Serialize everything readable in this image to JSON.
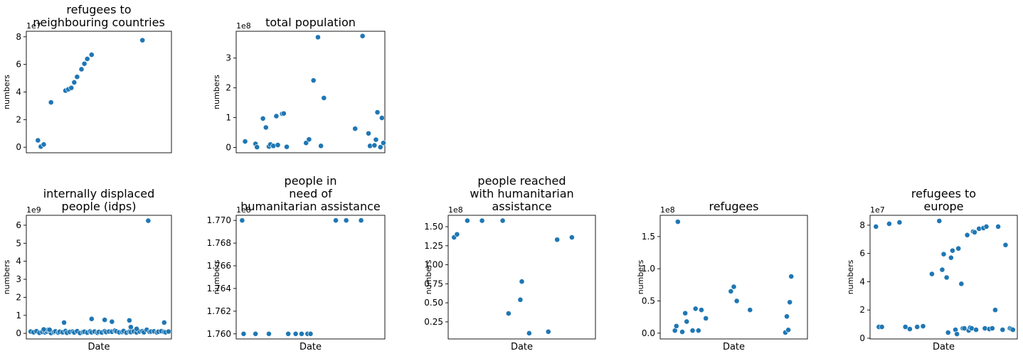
{
  "figure": {
    "background": "#ffffff",
    "point_color": "#1f77b4"
  },
  "chart_data": [
    {
      "type": "scatter",
      "title_lines": [
        "refugees to",
        "neighbouring countries"
      ],
      "xlabel": "",
      "ylabel": "numbers",
      "offset_label": "1e7",
      "ylim": [
        -0.4,
        8.4
      ],
      "yticks": [
        0,
        2,
        4,
        6,
        8
      ],
      "ytick_labels": [
        "0",
        "2",
        "4",
        "6",
        "8"
      ],
      "grid": false,
      "x": [
        0.08,
        0.1,
        0.12,
        0.17,
        0.27,
        0.29,
        0.31,
        0.33,
        0.35,
        0.38,
        0.4,
        0.42,
        0.45,
        0.8
      ],
      "y": [
        0.5,
        0.05,
        0.2,
        3.25,
        4.1,
        4.2,
        4.3,
        4.7,
        5.1,
        5.65,
        6.05,
        6.4,
        6.7,
        7.75
      ]
    },
    {
      "type": "scatter",
      "title_lines": [
        "total population"
      ],
      "xlabel": "",
      "ylabel": "numbers",
      "offset_label": "1e8",
      "ylim": [
        -0.18,
        3.9
      ],
      "yticks": [
        0,
        1,
        2,
        3
      ],
      "ytick_labels": [
        "0",
        "1",
        "2",
        "3"
      ],
      "grid": false,
      "x": [
        0.06,
        0.13,
        0.14,
        0.18,
        0.2,
        0.22,
        0.23,
        0.25,
        0.27,
        0.28,
        0.31,
        0.32,
        0.34,
        0.47,
        0.49,
        0.52,
        0.55,
        0.57,
        0.59,
        0.8,
        0.85,
        0.89,
        0.9,
        0.93,
        0.94,
        0.95,
        0.97,
        0.98,
        0.99
      ],
      "y": [
        0.2,
        0.12,
        0.01,
        0.97,
        0.67,
        0.03,
        0.1,
        0.05,
        1.05,
        0.08,
        1.13,
        1.14,
        0.02,
        0.15,
        0.27,
        2.25,
        3.7,
        0.05,
        1.66,
        0.63,
        3.74,
        0.47,
        0.05,
        0.07,
        0.26,
        1.18,
        0.01,
        0.99,
        0.15
      ]
    },
    {
      "type": "scatter",
      "title_lines": [
        "internally displaced",
        "people (idps)"
      ],
      "xlabel": "Date",
      "ylabel": "numbers",
      "offset_label": "1e9",
      "ylim": [
        -0.31,
        6.55
      ],
      "yticks": [
        0,
        1,
        2,
        3,
        4,
        5,
        6
      ],
      "ytick_labels": [
        "0",
        "1",
        "2",
        "3",
        "4",
        "5",
        "6"
      ],
      "grid": false,
      "x": [
        0.03,
        0.05,
        0.07,
        0.09,
        0.11,
        0.13,
        0.14,
        0.15,
        0.17,
        0.19,
        0.2,
        0.22,
        0.23,
        0.25,
        0.27,
        0.28,
        0.3,
        0.32,
        0.33,
        0.35,
        0.37,
        0.39,
        0.4,
        0.42,
        0.44,
        0.45,
        0.47,
        0.49,
        0.5,
        0.52,
        0.54,
        0.55,
        0.57,
        0.59,
        0.61,
        0.62,
        0.64,
        0.66,
        0.67,
        0.69,
        0.71,
        0.72,
        0.74,
        0.76,
        0.78,
        0.8,
        0.81,
        0.83,
        0.85,
        0.86,
        0.88,
        0.9,
        0.91,
        0.93,
        0.95,
        0.96,
        0.98,
        0.12,
        0.16,
        0.26,
        0.45,
        0.54,
        0.59,
        0.71,
        0.72,
        0.76,
        0.84,
        0.95
      ],
      "y": [
        0.1,
        0.06,
        0.12,
        0.03,
        0.08,
        0.05,
        0.1,
        0.2,
        0.02,
        0.07,
        0.11,
        0.04,
        0.09,
        0.06,
        0.13,
        0.03,
        0.08,
        0.1,
        0.05,
        0.12,
        0.02,
        0.07,
        0.09,
        0.04,
        0.11,
        0.06,
        0.1,
        0.03,
        0.08,
        0.05,
        0.12,
        0.07,
        0.1,
        0.09,
        0.15,
        0.11,
        0.06,
        0.08,
        0.13,
        0.04,
        0.09,
        0.07,
        0.11,
        0.05,
        0.1,
        0.12,
        0.06,
        0.2,
        0.08,
        0.1,
        0.11,
        0.05,
        0.09,
        0.12,
        0.08,
        0.06,
        0.1,
        0.22,
        0.2,
        0.6,
        0.8,
        0.75,
        0.65,
        0.72,
        0.35,
        0.25,
        6.25,
        0.6
      ]
    },
    {
      "type": "scatter",
      "title_lines": [
        "people in",
        "need of",
        "humanitarian assistance"
      ],
      "xlabel": "Date",
      "ylabel": "numbers",
      "offset_label": "1e8",
      "ylim": [
        1.75955,
        1.77045
      ],
      "yticks": [
        1.76,
        1.762,
        1.764,
        1.766,
        1.768,
        1.77
      ],
      "ytick_labels": [
        "1.760",
        "1.762",
        "1.764",
        "1.766",
        "1.768",
        "1.770"
      ],
      "grid": false,
      "x": [
        0.04,
        0.05,
        0.13,
        0.22,
        0.35,
        0.4,
        0.44,
        0.48,
        0.5,
        0.67,
        0.74,
        0.84
      ],
      "y": [
        1.77,
        1.76,
        1.76,
        1.76,
        1.76,
        1.76,
        1.76,
        1.76,
        1.76,
        1.77,
        1.77,
        1.77
      ]
    },
    {
      "type": "scatter",
      "title_lines": [
        "people reached",
        "with humanitarian",
        "assistance"
      ],
      "xlabel": "Date",
      "ylabel": "numbers",
      "offset_label": "1e8",
      "ylim": [
        0.025,
        1.65
      ],
      "yticks": [
        0.25,
        0.5,
        0.75,
        1.0,
        1.25,
        1.5
      ],
      "ytick_labels": [
        "0.25",
        "0.50",
        "0.75",
        "1.00",
        "1.25",
        "1.50"
      ],
      "grid": false,
      "x": [
        0.04,
        0.06,
        0.13,
        0.23,
        0.37,
        0.41,
        0.49,
        0.5,
        0.55,
        0.68,
        0.74,
        0.84
      ],
      "y": [
        1.36,
        1.4,
        1.58,
        1.58,
        1.58,
        0.36,
        0.54,
        0.78,
        0.1,
        0.12,
        1.33,
        1.36
      ]
    },
    {
      "type": "scatter",
      "title_lines": [
        "refugees"
      ],
      "xlabel": "Date",
      "ylabel": "numbers",
      "offset_label": "1e8",
      "ylim": [
        -0.09,
        1.83
      ],
      "yticks": [
        0.0,
        0.5,
        1.0,
        1.5
      ],
      "ytick_labels": [
        "0.0",
        "0.5",
        "1.0",
        "1.5"
      ],
      "grid": false,
      "x": [
        0.1,
        0.11,
        0.12,
        0.15,
        0.17,
        0.18,
        0.22,
        0.24,
        0.26,
        0.28,
        0.31,
        0.48,
        0.5,
        0.52,
        0.61,
        0.85,
        0.86,
        0.87,
        0.88,
        0.89
      ],
      "y": [
        0.04,
        0.11,
        1.73,
        0.02,
        0.31,
        0.18,
        0.04,
        0.38,
        0.04,
        0.36,
        0.23,
        0.65,
        0.72,
        0.5,
        0.36,
        0.01,
        0.26,
        0.05,
        0.48,
        0.88
      ]
    },
    {
      "type": "scatter",
      "title_lines": [
        "refugees to",
        "europe"
      ],
      "xlabel": "Date",
      "ylabel": "numbers",
      "offset_label": "1e7",
      "ylim": [
        -0.05,
        8.7
      ],
      "yticks": [
        0,
        2,
        4,
        6,
        8
      ],
      "ytick_labels": [
        "0",
        "2",
        "4",
        "6",
        "8"
      ],
      "grid": false,
      "x": [
        0.04,
        0.06,
        0.08,
        0.13,
        0.2,
        0.24,
        0.27,
        0.32,
        0.36,
        0.42,
        0.47,
        0.49,
        0.5,
        0.52,
        0.53,
        0.55,
        0.56,
        0.58,
        0.59,
        0.6,
        0.62,
        0.63,
        0.64,
        0.66,
        0.67,
        0.68,
        0.69,
        0.7,
        0.71,
        0.72,
        0.74,
        0.77,
        0.78,
        0.79,
        0.81,
        0.83,
        0.85,
        0.87,
        0.9,
        0.92,
        0.95,
        0.96,
        0.97
      ],
      "y": [
        7.9,
        0.8,
        0.8,
        8.1,
        8.2,
        0.8,
        0.65,
        0.8,
        0.85,
        4.55,
        8.3,
        4.85,
        5.95,
        4.3,
        0.4,
        5.7,
        6.2,
        0.6,
        0.3,
        6.35,
        3.85,
        0.7,
        0.7,
        7.3,
        0.55,
        0.75,
        0.7,
        7.55,
        7.5,
        0.6,
        7.75,
        7.8,
        0.7,
        7.9,
        0.65,
        0.7,
        2.0,
        7.9,
        0.6,
        6.6,
        0.7,
        0.65,
        0.6
      ]
    }
  ]
}
